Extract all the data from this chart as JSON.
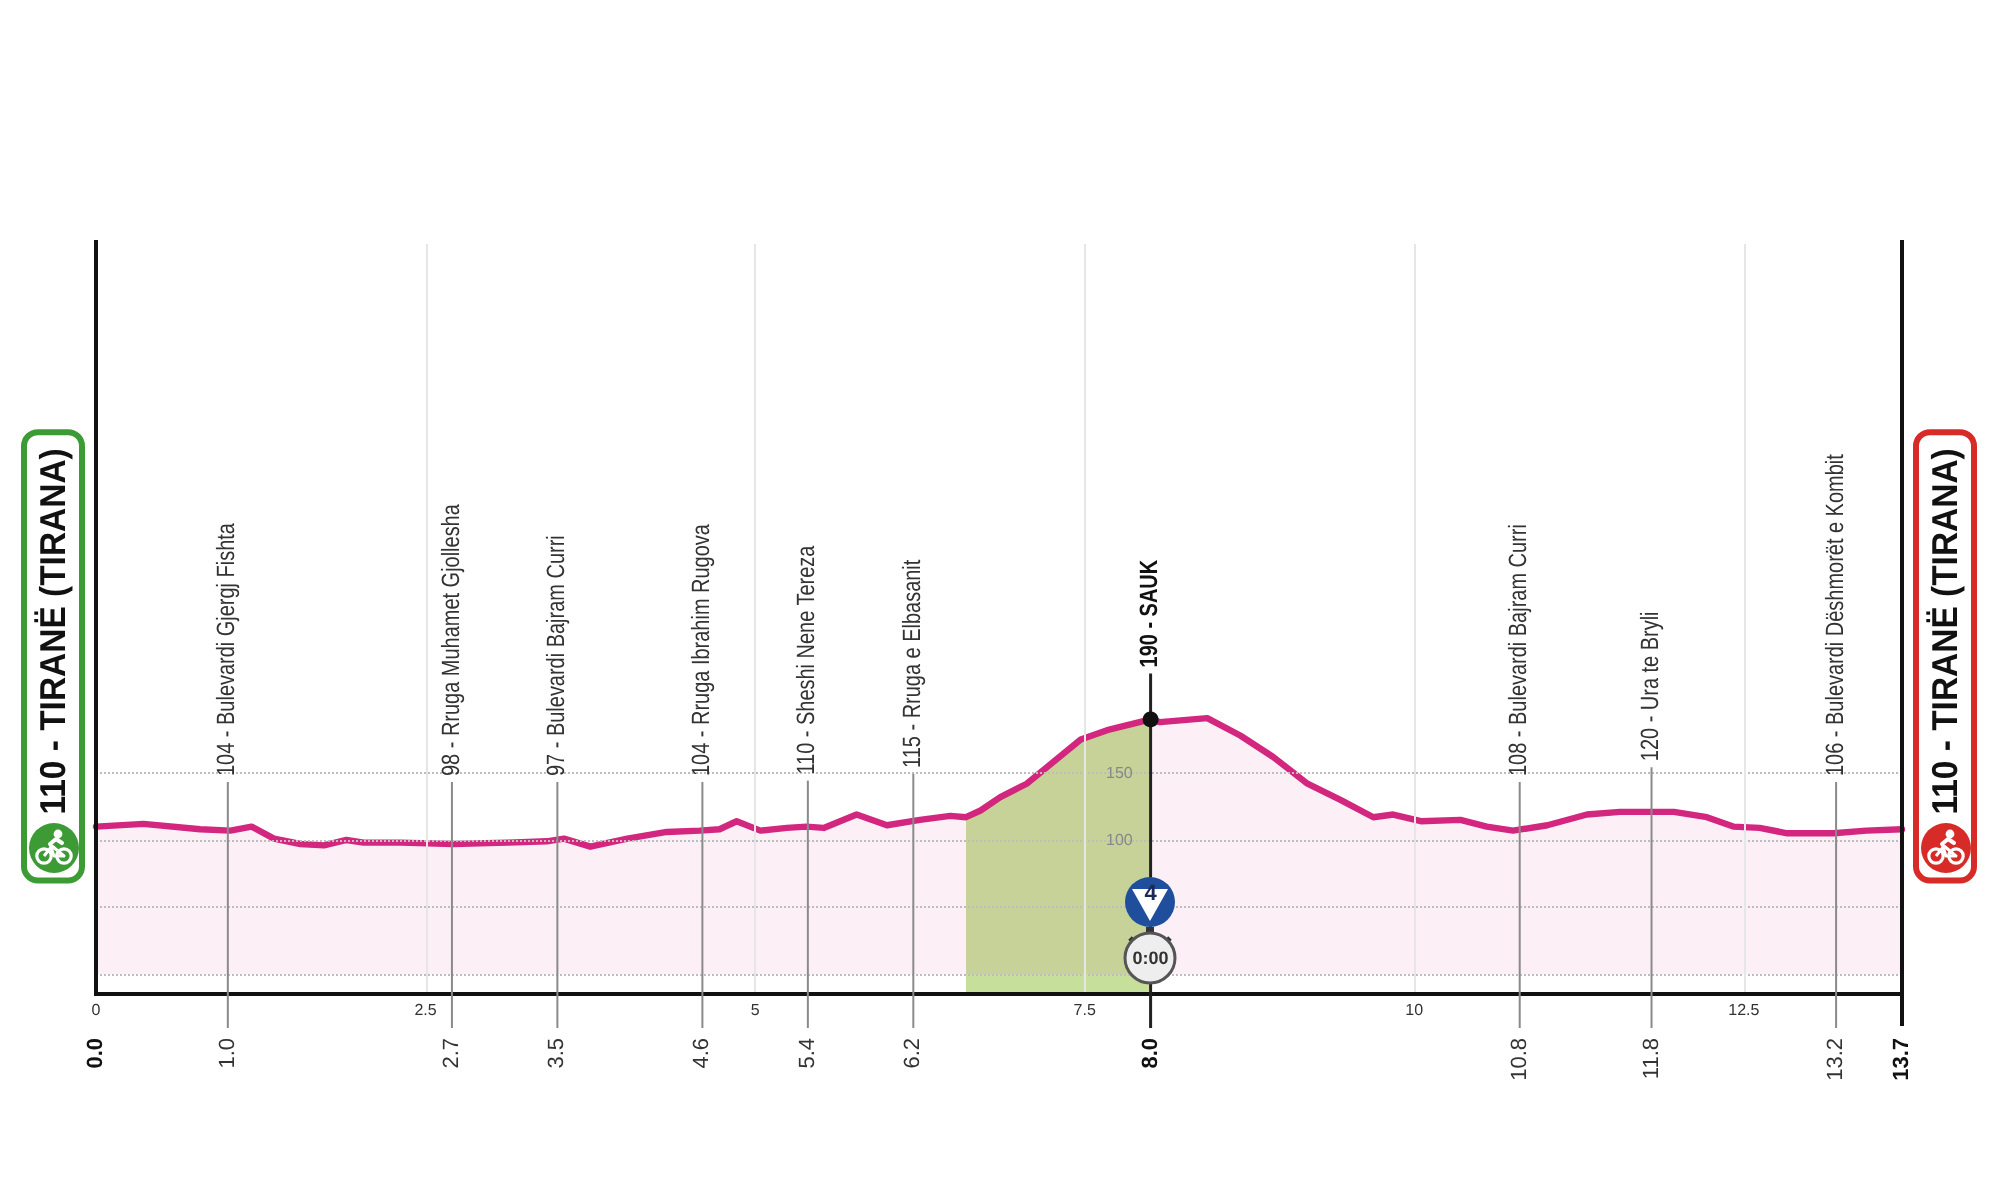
{
  "chart_data": {
    "type": "area",
    "color": "#d3277f",
    "x": [
      0,
      0.36,
      0.79,
      1.02,
      1.18,
      1.35,
      1.55,
      1.73,
      1.9,
      2.03,
      2.31,
      2.71,
      3.12,
      3.42,
      3.55,
      3.75,
      4.03,
      4.33,
      4.58,
      4.73,
      4.86,
      5.04,
      5.24,
      5.39,
      5.52,
      5.77,
      6.0,
      6.25,
      6.48,
      6.6,
      6.71,
      6.86,
      7.06,
      7.47,
      7.67,
      8.0,
      8.07,
      8.43,
      8.68,
      8.93,
      9.19,
      9.44,
      9.69,
      9.84,
      10.05,
      10.35,
      10.55,
      10.75,
      11.01,
      11.31,
      11.56,
      11.97,
      12.22,
      12.42,
      12.62,
      12.83,
      13.18,
      13.43,
      13.7
    ],
    "values": [
      110,
      112,
      108,
      107,
      110,
      101,
      97,
      96,
      100,
      98,
      98,
      97,
      98,
      99,
      101,
      95,
      101,
      106,
      107,
      108,
      114,
      107,
      109,
      110,
      109,
      119,
      111,
      115,
      118,
      117,
      122,
      132,
      142,
      175,
      182,
      190,
      188,
      191,
      178,
      162,
      142,
      130,
      117,
      119,
      114,
      115,
      110,
      107,
      111,
      119,
      121,
      121,
      117,
      110,
      109,
      105,
      105,
      107,
      108
    ],
    "xlim": [
      0,
      13.7
    ],
    "xticks": [
      0,
      2.5,
      5,
      7.5,
      10,
      12.5
    ],
    "x2lim": [
      0,
      13.7
    ],
    "x2ticks": [
      {
        "value": 0,
        "label": "0.0"
      },
      {
        "value": 1,
        "label": "1.0"
      },
      2.7,
      3.5,
      4.6,
      5.4,
      6.2,
      {
        "value": 8,
        "label": "8.0"
      },
      10.8,
      11.8,
      13.2,
      13.7
    ],
    "ylim": [
      -15,
      545
    ],
    "yticks": [
      {
        "value": 0,
        "label": null
      },
      {
        "value": 50,
        "label": null
      },
      100,
      150
    ],
    "bands": [
      {
        "axis": "x",
        "from": 6.6,
        "to": 8.0,
        "color": "#c6df9a"
      }
    ],
    "annotations": [
      {
        "text": "110 - TIRANË (TIRANA)",
        "x": 0,
        "y": 110
      },
      {
        "text": "104 - Bulevardi Gjergj Fishta",
        "x": 1.0,
        "y": 104
      },
      {
        "text": "98 - Rruga Muhamet Gjollesha",
        "x": 2.7,
        "y": 98
      },
      {
        "text": "97 - Bulevardi Bajram Curri",
        "x": 3.5,
        "y": 97
      },
      {
        "text": "104 - Rruga Ibrahim Rugova",
        "x": 4.6,
        "y": 104
      },
      {
        "text": "110 - Sheshi Nene Tereza",
        "x": 5.4,
        "y": 110
      },
      {
        "text": "115 - Rruga e Elbasanit",
        "x": 6.2,
        "y": 115
      },
      {
        "text": "190 - SAUK",
        "x": 8.0,
        "y": 190
      },
      {
        "text": "108 - Bulevardi Bajram Curri",
        "x": 10.8,
        "y": 108
      },
      {
        "text": "120 - Ura te Bryli",
        "x": 11.8,
        "y": 120
      },
      {
        "text": "106 - Bulevardi Dëshmorët e Kombit",
        "x": 13.2,
        "y": 106
      },
      {
        "text": "110 - TIRANË (TIRANA)",
        "x": 13.7,
        "y": 110
      },
      {
        "text": "0:00",
        "x": 8.0
      },
      {
        "text": "4",
        "x": 8.0
      }
    ],
    "grid": true
  }
}
